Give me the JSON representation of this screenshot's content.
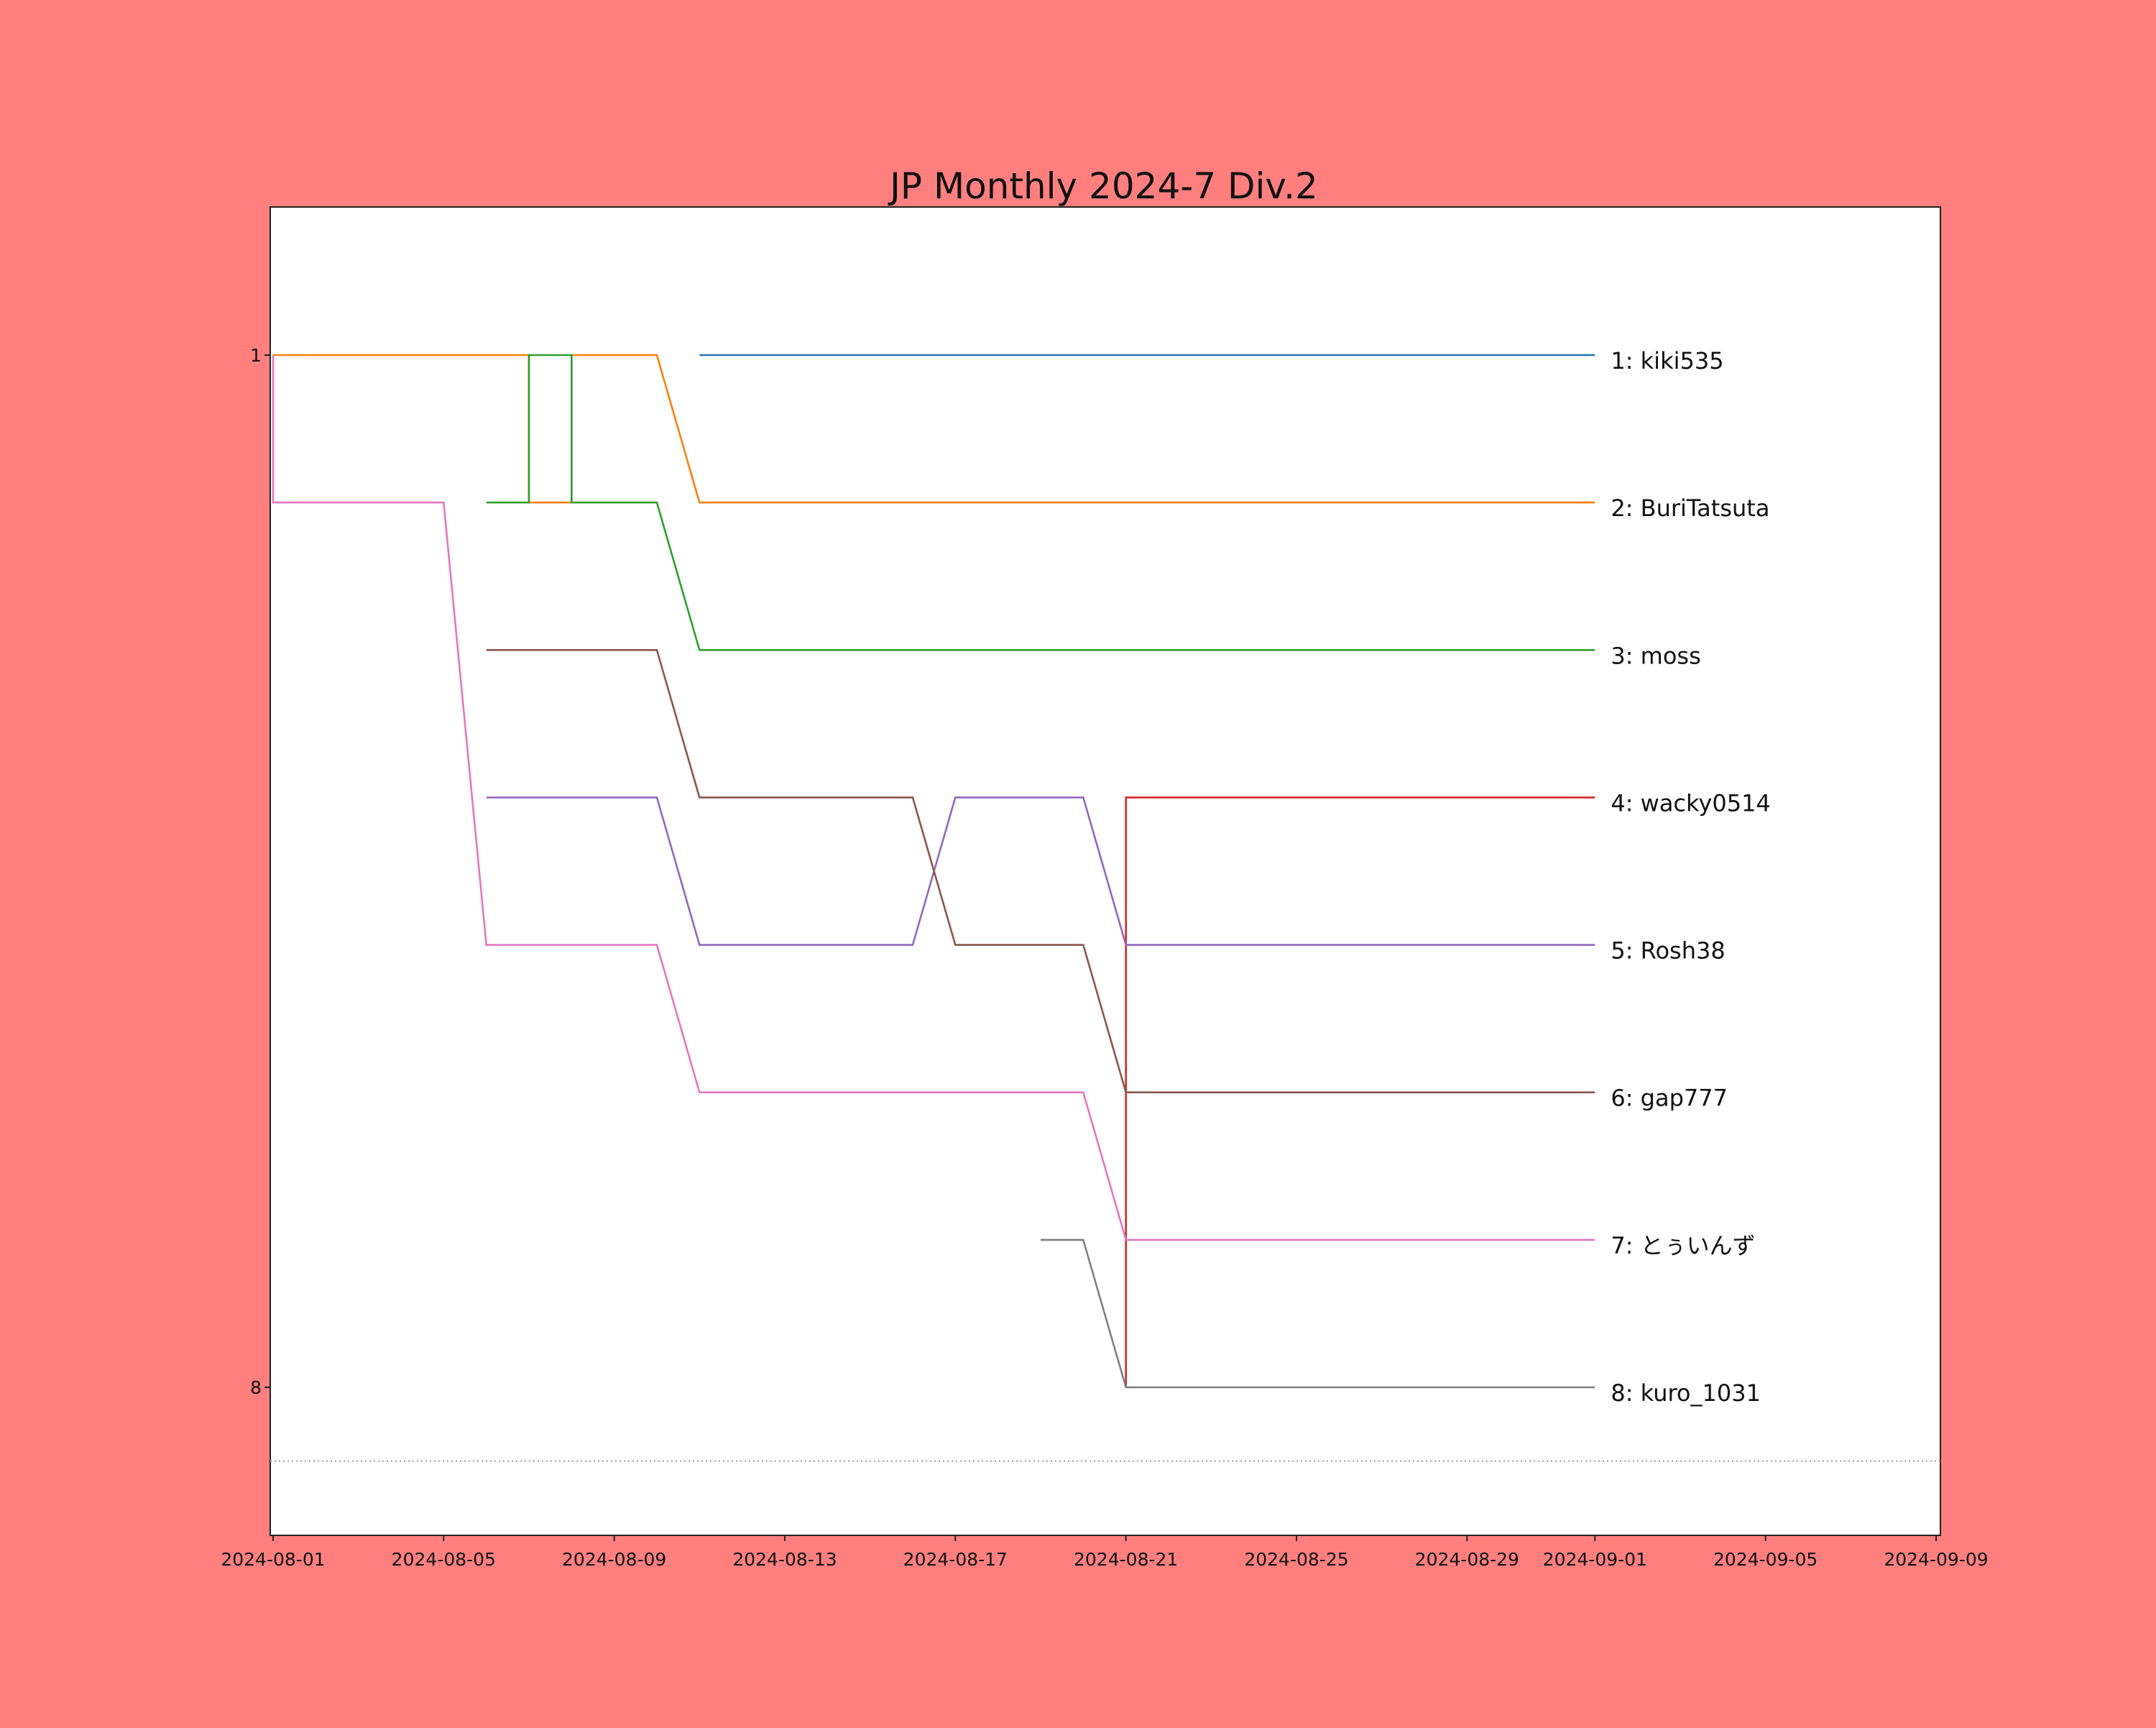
{
  "page": {
    "background": "#ff7f7f"
  },
  "chart_data": {
    "type": "line",
    "title": "JP Monthly 2024-7 Div.2",
    "xlabel": "",
    "ylabel": "",
    "x_axis": {
      "scale": "date",
      "range": [
        "2024-08-01",
        "2024-09-09"
      ]
    },
    "y_axis": {
      "range": [
        10,
        0
      ],
      "inverted": true,
      "ticks": [
        1,
        8
      ]
    },
    "x_ticks": [
      "2024-08-01",
      "2024-08-05",
      "2024-08-09",
      "2024-08-13",
      "2024-08-17",
      "2024-08-21",
      "2024-08-25",
      "2024-08-29",
      "2024-09-01",
      "2024-09-05",
      "2024-09-09"
    ],
    "y_ticks": [
      "1",
      "8"
    ],
    "reference_line": {
      "y": 8.5,
      "style": "dotted"
    },
    "grid": false,
    "series": [
      {
        "name": "1: kiki535",
        "color": "#1f77b4",
        "points": [
          [
            "2024-08-11",
            1
          ],
          [
            "2024-09-01",
            1
          ]
        ]
      },
      {
        "name": "2: BuriTatsuta",
        "color": "#ff7f0e",
        "points": [
          [
            "2024-08-01",
            1
          ],
          [
            "2024-08-07",
            1
          ],
          [
            "2024-08-07",
            2
          ],
          [
            "2024-08-08",
            2
          ],
          [
            "2024-08-08",
            1
          ],
          [
            "2024-08-10",
            1
          ],
          [
            "2024-08-11",
            2
          ],
          [
            "2024-09-01",
            2
          ]
        ]
      },
      {
        "name": "3: moss",
        "color": "#2ca02c",
        "points": [
          [
            "2024-08-06",
            2
          ],
          [
            "2024-08-07",
            2
          ],
          [
            "2024-08-07",
            1
          ],
          [
            "2024-08-08",
            1
          ],
          [
            "2024-08-08",
            2
          ],
          [
            "2024-08-10",
            2
          ],
          [
            "2024-08-11",
            3
          ],
          [
            "2024-09-01",
            3
          ]
        ]
      },
      {
        "name": "4: wacky0514",
        "color": "#d62728",
        "points": [
          [
            "2024-08-21",
            8
          ],
          [
            "2024-08-21",
            4
          ],
          [
            "2024-09-01",
            4
          ]
        ]
      },
      {
        "name": "5: Rosh38",
        "color": "#9467bd",
        "points": [
          [
            "2024-08-06",
            4
          ],
          [
            "2024-08-10",
            4
          ],
          [
            "2024-08-11",
            5
          ],
          [
            "2024-08-16",
            5
          ],
          [
            "2024-08-17",
            4
          ],
          [
            "2024-08-20",
            4
          ],
          [
            "2024-08-21",
            5
          ],
          [
            "2024-09-01",
            5
          ]
        ]
      },
      {
        "name": "6: gap777",
        "color": "#8c564b",
        "points": [
          [
            "2024-08-06",
            3
          ],
          [
            "2024-08-10",
            3
          ],
          [
            "2024-08-11",
            4
          ],
          [
            "2024-08-16",
            4
          ],
          [
            "2024-08-17",
            5
          ],
          [
            "2024-08-20",
            5
          ],
          [
            "2024-08-21",
            6
          ],
          [
            "2024-09-01",
            6
          ]
        ]
      },
      {
        "name": "7: とぅいんず",
        "color": "#e377c2",
        "points": [
          [
            "2024-08-01",
            1
          ],
          [
            "2024-08-01",
            2
          ],
          [
            "2024-08-05",
            2
          ],
          [
            "2024-08-06",
            5
          ],
          [
            "2024-08-10",
            5
          ],
          [
            "2024-08-11",
            6
          ],
          [
            "2024-08-20",
            6
          ],
          [
            "2024-08-21",
            7
          ],
          [
            "2024-09-01",
            7
          ]
        ]
      },
      {
        "name": "8: kuro_1031",
        "color": "#7f7f7f",
        "points": [
          [
            "2024-08-19",
            7
          ],
          [
            "2024-08-20",
            7
          ],
          [
            "2024-08-21",
            8
          ],
          [
            "2024-09-01",
            8
          ]
        ]
      }
    ]
  }
}
